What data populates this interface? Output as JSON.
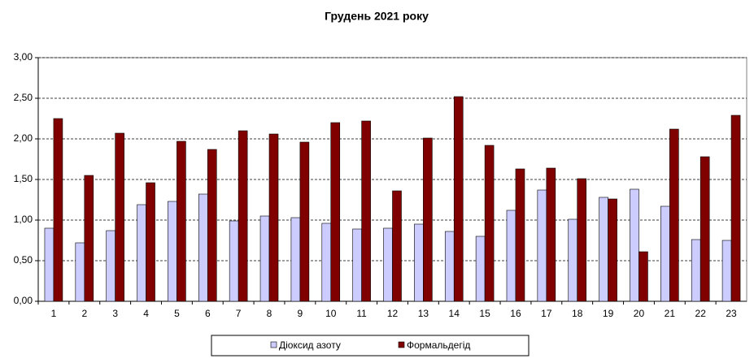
{
  "chart_data": {
    "type": "bar",
    "title": "Грудень 2021 року",
    "categories": [
      "1",
      "2",
      "3",
      "4",
      "5",
      "6",
      "7",
      "8",
      "9",
      "10",
      "11",
      "12",
      "13",
      "14",
      "15",
      "16",
      "17",
      "18",
      "19",
      "20",
      "21",
      "22",
      "23"
    ],
    "series": [
      {
        "name": "Діоксид азоту",
        "color": "#ccccff",
        "values": [
          0.9,
          0.72,
          0.87,
          1.19,
          1.23,
          1.32,
          0.99,
          1.05,
          1.03,
          0.96,
          0.89,
          0.9,
          0.95,
          0.86,
          0.8,
          1.12,
          1.37,
          1.01,
          1.28,
          1.38,
          1.17,
          0.76,
          0.75
        ]
      },
      {
        "name": "Формальдегід",
        "color": "#800000",
        "values": [
          2.25,
          1.55,
          2.07,
          1.46,
          1.97,
          1.87,
          2.1,
          2.06,
          1.96,
          2.2,
          2.22,
          1.36,
          2.01,
          2.52,
          1.92,
          1.63,
          1.64,
          1.51,
          1.26,
          0.61,
          2.12,
          1.78,
          2.29
        ]
      }
    ],
    "ylim": [
      0,
      3
    ],
    "yticks": [
      {
        "value": 0,
        "label": "0,00"
      },
      {
        "value": 0.5,
        "label": "0,50"
      },
      {
        "value": 1,
        "label": "1,00"
      },
      {
        "value": 1.5,
        "label": "1,50"
      },
      {
        "value": 2,
        "label": "2,00"
      },
      {
        "value": 2.5,
        "label": "2,50"
      },
      {
        "value": 3,
        "label": "3,00"
      }
    ],
    "grid": true,
    "legend": "bottom"
  }
}
